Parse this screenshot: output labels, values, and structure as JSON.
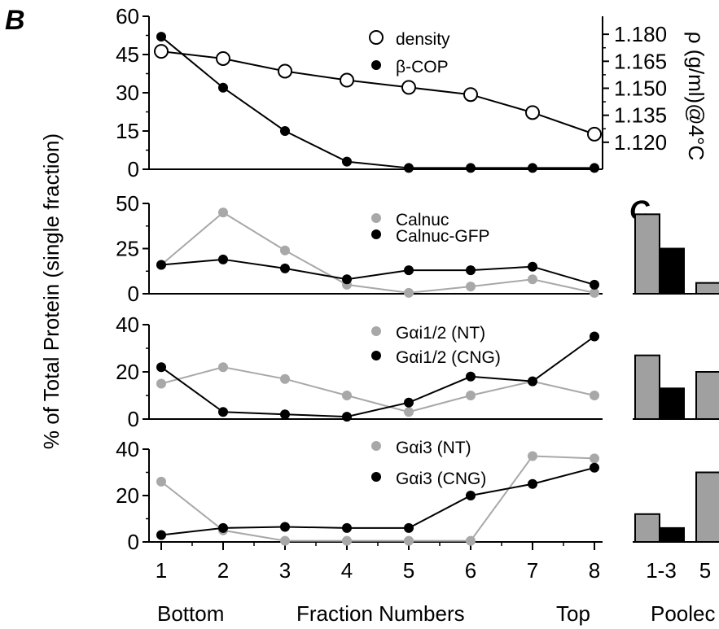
{
  "figure": {
    "panel_b_label": "B",
    "panel_c_label": "C",
    "y_axis_title": "% of Total Protein (single fraction)",
    "right_axis_title": "ρ (g/ml)@4°C",
    "x_axis_title": "Fraction Numbers",
    "x_left_label": "Bottom",
    "x_right_label": "Top",
    "pooled_label": "Poolec",
    "colors": {
      "gray": "#a8a8a8",
      "black": "#000000",
      "bar_gray": "#a0a0a0"
    }
  },
  "chart_data": [
    {
      "type": "line",
      "panel": "B-1",
      "x": [
        1,
        2,
        3,
        4,
        5,
        6,
        7,
        8
      ],
      "xticks": [
        "1",
        "2",
        "3",
        "4",
        "5",
        "6",
        "7",
        "8"
      ],
      "ylim": [
        0,
        60
      ],
      "yticks": [
        "0",
        "15",
        "30",
        "45",
        "60"
      ],
      "y2lim": [
        1.105,
        1.19
      ],
      "y2ticks": [
        "1.120",
        "1.135",
        "1.150",
        "1.165",
        "1.180"
      ],
      "series": [
        {
          "name": "density",
          "axis": "right",
          "style": "open",
          "color": "#000000",
          "values": [
            1.1705,
            1.1665,
            1.1595,
            1.1545,
            1.1505,
            1.1465,
            1.1365,
            1.1245
          ]
        },
        {
          "name": "β-COP",
          "axis": "left",
          "style": "filled",
          "color": "#000000",
          "values": [
            52,
            32,
            15,
            3,
            0.5,
            0.5,
            0.5,
            0.5
          ]
        }
      ]
    },
    {
      "type": "line",
      "panel": "B-2",
      "x": [
        1,
        2,
        3,
        4,
        5,
        6,
        7,
        8
      ],
      "ylim": [
        0,
        50
      ],
      "yticks": [
        "0",
        "25",
        "50"
      ],
      "series": [
        {
          "name": "Calnuc",
          "style": "filled",
          "color": "#a8a8a8",
          "values": [
            16,
            45,
            24,
            5,
            0.5,
            4,
            8,
            0.5
          ]
        },
        {
          "name": "Calnuc-GFP",
          "style": "filled",
          "color": "#000000",
          "values": [
            16,
            19,
            14,
            8,
            13,
            13,
            15,
            5
          ]
        }
      ]
    },
    {
      "type": "line",
      "panel": "B-3",
      "x": [
        1,
        2,
        3,
        4,
        5,
        6,
        7,
        8
      ],
      "ylim": [
        0,
        40
      ],
      "yticks": [
        "0",
        "20",
        "40"
      ],
      "series": [
        {
          "name": "Gαi1/2 (NT)",
          "style": "filled",
          "color": "#a8a8a8",
          "values": [
            15,
            22,
            17,
            10,
            3,
            10,
            16,
            10
          ]
        },
        {
          "name": "Gαi1/2 (CNG)",
          "style": "filled",
          "color": "#000000",
          "values": [
            22,
            3,
            2,
            1,
            7,
            18,
            16,
            35
          ]
        }
      ]
    },
    {
      "type": "line",
      "panel": "B-4",
      "x": [
        1,
        2,
        3,
        4,
        5,
        6,
        7,
        8
      ],
      "ylim": [
        0,
        40
      ],
      "yticks": [
        "0",
        "20",
        "40"
      ],
      "series": [
        {
          "name": "Gαi3 (NT)",
          "style": "filled",
          "color": "#a8a8a8",
          "values": [
            26,
            5,
            0.5,
            0.5,
            0.5,
            0.5,
            37,
            36
          ]
        },
        {
          "name": "Gαi3 (CNG)",
          "style": "filled",
          "color": "#000000",
          "values": [
            3,
            6,
            6.5,
            6,
            6,
            20,
            25,
            32
          ]
        }
      ]
    },
    {
      "type": "bar",
      "panel": "C",
      "categories": [
        "1-3",
        "5"
      ],
      "rows": [
        {
          "ylim": [
            0,
            50
          ],
          "gray": [
            44,
            6
          ],
          "black": [
            25,
            null
          ]
        },
        {
          "ylim": [
            0,
            40
          ],
          "gray": [
            27,
            20
          ],
          "black": [
            13,
            null
          ]
        },
        {
          "ylim": [
            0,
            40
          ],
          "gray": [
            12,
            30
          ],
          "black": [
            6,
            null
          ]
        }
      ]
    }
  ]
}
